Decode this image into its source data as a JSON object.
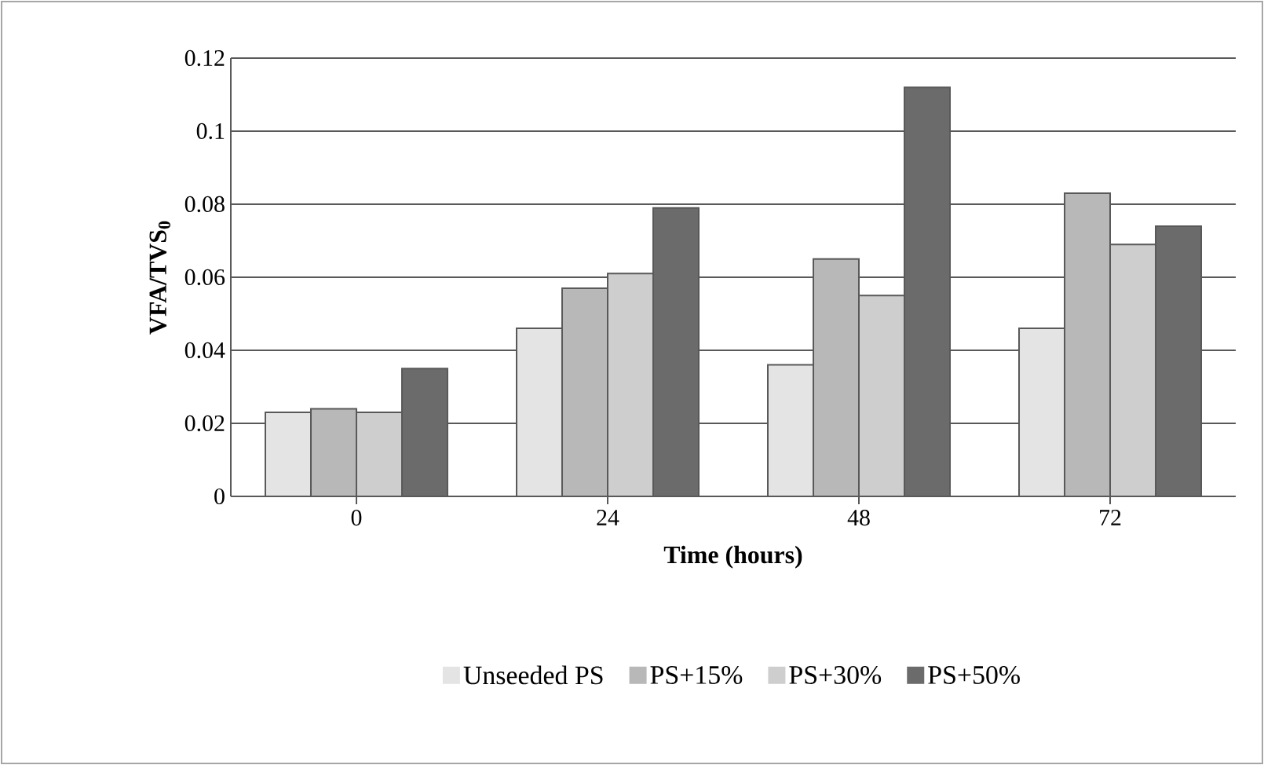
{
  "chart_data": {
    "type": "bar",
    "xlabel": "Time (hours)",
    "ylabel": "VFA/TVS$_{0}$",
    "categories": [
      "0",
      "24",
      "48",
      "72"
    ],
    "series": [
      {
        "name": "Unseeded PS",
        "color": "#e4e4e4",
        "values": [
          0.023,
          0.046,
          0.036,
          0.046
        ]
      },
      {
        "name": "PS+15%",
        "color": "#b8b8b8",
        "values": [
          0.024,
          0.057,
          0.065,
          0.083
        ]
      },
      {
        "name": "PS+30%",
        "color": "#cecece",
        "values": [
          0.023,
          0.061,
          0.055,
          0.069
        ]
      },
      {
        "name": "PS+50%",
        "color": "#6b6b6b",
        "values": [
          0.035,
          0.079,
          0.112,
          0.074
        ]
      }
    ],
    "ylim": [
      0,
      0.12
    ],
    "yticks": [
      0,
      0.02,
      0.04,
      0.06,
      0.08,
      0.1,
      0.12
    ],
    "grid": "y",
    "legend": "bottom"
  }
}
